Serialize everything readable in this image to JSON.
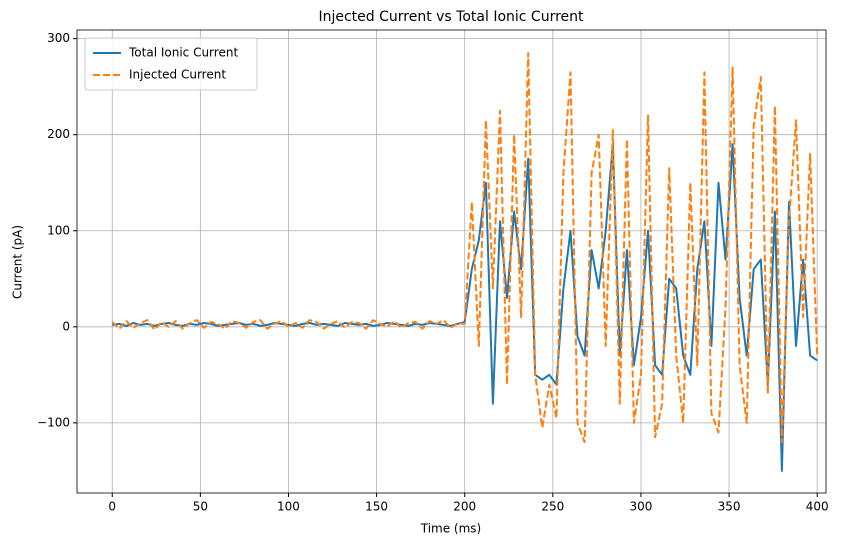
{
  "chart_data": {
    "type": "line",
    "title": "Injected Current vs Total Ionic Current",
    "xlabel": "Time (ms)",
    "ylabel": "Current (pA)",
    "x": [
      0,
      4,
      8,
      12,
      16,
      20,
      24,
      28,
      32,
      36,
      40,
      44,
      48,
      52,
      56,
      60,
      64,
      68,
      72,
      76,
      80,
      84,
      88,
      92,
      96,
      100,
      104,
      108,
      112,
      116,
      120,
      124,
      128,
      132,
      136,
      140,
      144,
      148,
      152,
      156,
      160,
      164,
      168,
      172,
      176,
      180,
      184,
      188,
      192,
      196,
      200,
      204,
      208,
      212,
      216,
      220,
      224,
      228,
      232,
      236,
      240,
      244,
      248,
      252,
      256,
      260,
      264,
      268,
      272,
      276,
      280,
      284,
      288,
      292,
      296,
      300,
      304,
      308,
      312,
      316,
      320,
      324,
      328,
      332,
      336,
      340,
      344,
      348,
      352,
      356,
      360,
      364,
      368,
      372,
      376,
      380,
      384,
      388,
      392,
      396,
      400
    ],
    "series": [
      {
        "name": "Total Ionic Current",
        "color": "#1f77b4",
        "dashed": false,
        "values": [
          2,
          3,
          1,
          4,
          2,
          3,
          1,
          3,
          4,
          2,
          1,
          3,
          2,
          4,
          3,
          1,
          2,
          3,
          4,
          2,
          3,
          1,
          2,
          4,
          3,
          2,
          1,
          3,
          4,
          2,
          3,
          2,
          1,
          4,
          3,
          2,
          3,
          1,
          2,
          4,
          3,
          2,
          1,
          3,
          2,
          4,
          3,
          2,
          1,
          3,
          5,
          60,
          90,
          150,
          -80,
          110,
          30,
          120,
          60,
          175,
          -50,
          -55,
          -50,
          -60,
          40,
          100,
          -10,
          -30,
          80,
          40,
          100,
          190,
          -30,
          80,
          -40,
          10,
          100,
          -40,
          -50,
          50,
          40,
          -30,
          -50,
          60,
          110,
          -20,
          150,
          70,
          190,
          30,
          -30,
          60,
          70,
          -60,
          120,
          -150,
          130,
          -20,
          70,
          -30,
          -35
        ]
      },
      {
        "name": "Injected Current",
        "color": "#ff7f0e",
        "dashed": true,
        "values": [
          5,
          -2,
          6,
          -1,
          4,
          7,
          -3,
          5,
          0,
          6,
          -2,
          4,
          7,
          -1,
          5,
          3,
          -2,
          6,
          4,
          -1,
          5,
          7,
          -2,
          3,
          6,
          0,
          4,
          -1,
          7,
          5,
          -2,
          3,
          6,
          -1,
          5,
          4,
          -2,
          7,
          3,
          0,
          6,
          -1,
          4,
          5,
          -2,
          6,
          3,
          7,
          -1,
          4,
          3,
          130,
          -20,
          215,
          40,
          225,
          -60,
          200,
          10,
          285,
          -50,
          -105,
          -60,
          -95,
          160,
          265,
          -100,
          -120,
          160,
          200,
          -20,
          205,
          -80,
          195,
          -100,
          -50,
          220,
          -115,
          -80,
          165,
          -30,
          -100,
          150,
          -40,
          265,
          -90,
          -110,
          20,
          270,
          -40,
          -100,
          210,
          260,
          -70,
          230,
          -120,
          110,
          215,
          10,
          180,
          -30
        ]
      }
    ],
    "xlim": [
      -20,
      405
    ],
    "ylim": [
      -173,
      309
    ],
    "xticks": [
      0,
      50,
      100,
      150,
      200,
      250,
      300,
      350,
      400
    ],
    "yticks": [
      {
        "value": -100,
        "label": "−100"
      },
      0,
      100,
      200,
      300
    ],
    "grid": true,
    "legend": "upper left"
  }
}
